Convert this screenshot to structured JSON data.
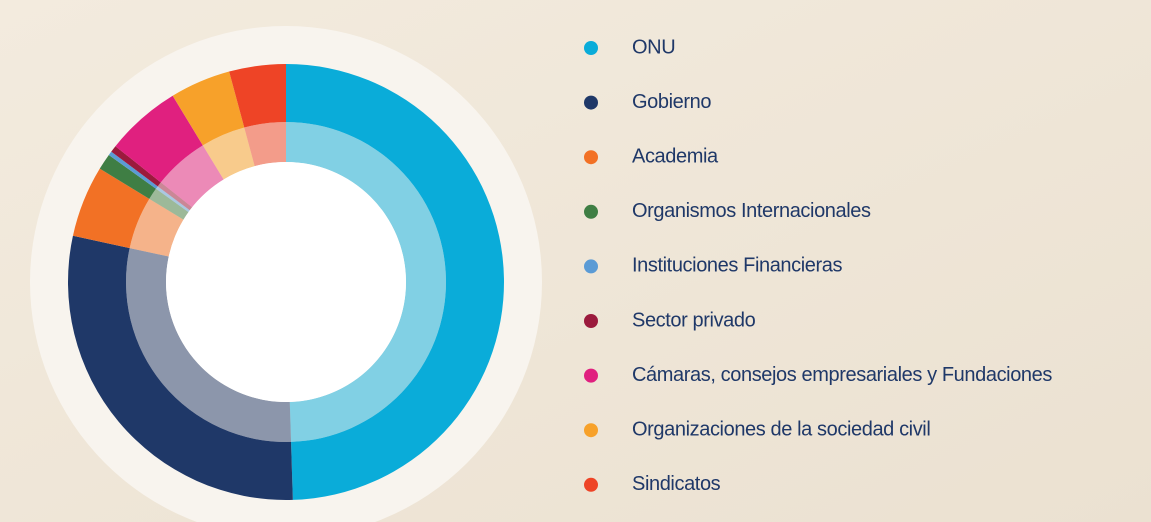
{
  "chart_data": {
    "type": "donut",
    "categories": [
      "ONU",
      "Gobierno",
      "Academia",
      "Organismos Internacionales",
      "Instituciones Financieras",
      "Sector privado",
      "Cámaras, consejos empresariales y Fundaciones",
      "Organizaciones de la sociedad civil",
      "Sindicatos"
    ],
    "values": [
      49.5,
      28.9,
      5.3,
      1.2,
      0.3,
      0.5,
      5.6,
      4.5,
      4.2
    ],
    "colors": [
      "#0aacd9",
      "#1f3868",
      "#f27125",
      "#3f7e44",
      "#5b9bd5",
      "#9b1a3d",
      "#e0207f",
      "#f7a12a",
      "#ee4426"
    ],
    "legend": "right"
  }
}
